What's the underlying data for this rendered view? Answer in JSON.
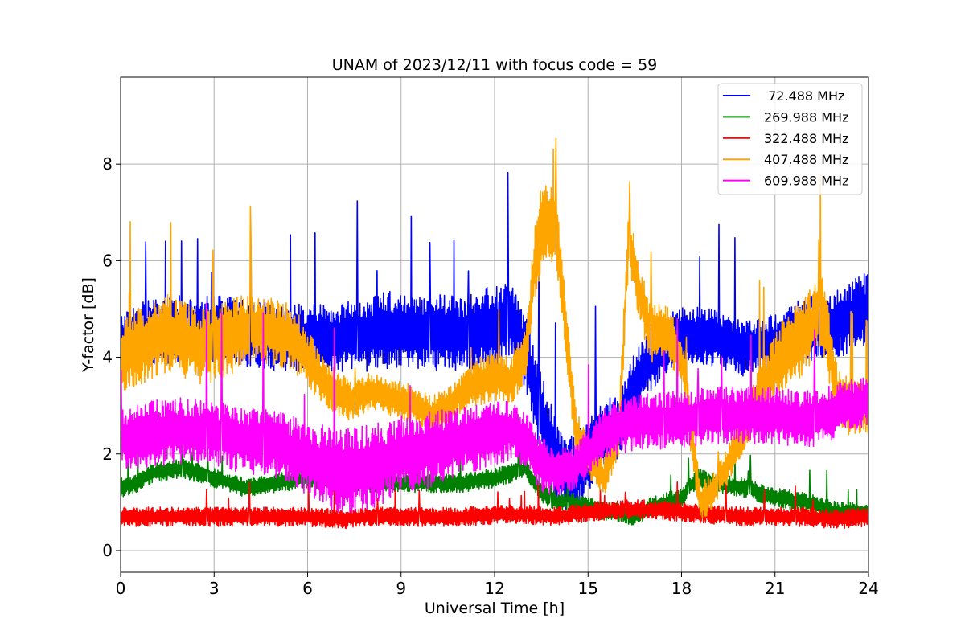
{
  "chart_data": {
    "type": "line",
    "title": "UNAM of 2023/12/11 with focus code = 59",
    "xlabel": "Universal Time [h]",
    "ylabel": "Y-factor [dB]",
    "xlim": [
      0,
      24
    ],
    "ylim": [
      -0.45,
      9.8
    ],
    "xticks": [
      0,
      3,
      6,
      9,
      12,
      15,
      18,
      21,
      24
    ],
    "yticks": [
      0,
      2,
      4,
      6,
      8
    ],
    "grid": true,
    "legend_position": "top-right",
    "series": [
      {
        "name": " 72.488 MHz",
        "color": "#0000ff",
        "x": [
          0,
          0.5,
          1,
          2,
          3,
          4,
          5,
          6,
          7,
          8,
          9,
          10,
          11,
          12,
          12.5,
          13,
          13.5,
          14,
          14.5,
          15,
          15.5,
          16,
          16.5,
          17,
          18,
          19,
          20,
          21,
          22,
          23,
          24
        ],
        "y": [
          4.3,
          4.5,
          4.5,
          4.6,
          4.6,
          4.5,
          4.4,
          4.4,
          4.4,
          4.5,
          4.6,
          4.5,
          4.5,
          4.6,
          4.8,
          4.1,
          2.8,
          1.8,
          1.5,
          2.0,
          2.4,
          2.6,
          3.4,
          4.0,
          4.5,
          4.4,
          4.2,
          4.3,
          4.6,
          4.7,
          5.0
        ],
        "band": [
          0.6,
          0.6,
          0.7,
          0.7,
          0.7,
          0.7,
          0.7,
          0.7,
          0.7,
          0.8,
          0.8,
          0.8,
          0.8,
          0.9,
          0.8,
          0.8,
          0.9,
          0.9,
          0.9,
          0.8,
          0.7,
          0.7,
          0.7,
          0.7,
          0.6,
          0.6,
          0.6,
          0.6,
          0.7,
          0.7,
          0.8
        ]
      },
      {
        "name": "269.988 MHz",
        "color": "#008000",
        "x": [
          0,
          0.5,
          1,
          2,
          3,
          4,
          5,
          6,
          7,
          8,
          9,
          10,
          11,
          12,
          12.5,
          13,
          13.5,
          14,
          14.5,
          15,
          15.5,
          16,
          16.5,
          17,
          18,
          18.5,
          19,
          20,
          21,
          22,
          23,
          24
        ],
        "y": [
          1.3,
          1.4,
          1.6,
          1.7,
          1.5,
          1.3,
          1.4,
          1.5,
          1.4,
          1.4,
          1.4,
          1.4,
          1.4,
          1.5,
          1.6,
          1.7,
          1.2,
          1.0,
          1.0,
          0.9,
          0.8,
          0.8,
          0.7,
          0.9,
          1.1,
          1.5,
          1.4,
          1.3,
          1.1,
          1.0,
          0.8,
          0.8
        ],
        "band": [
          0.2,
          0.2,
          0.2,
          0.2,
          0.2,
          0.2,
          0.2,
          0.2,
          0.2,
          0.2,
          0.2,
          0.2,
          0.2,
          0.2,
          0.2,
          0.2,
          0.2,
          0.2,
          0.2,
          0.2,
          0.2,
          0.2,
          0.2,
          0.2,
          0.2,
          0.2,
          0.2,
          0.2,
          0.2,
          0.2,
          0.2,
          0.2
        ]
      },
      {
        "name": "322.488 MHz",
        "color": "#ff0000",
        "x": [
          0,
          1,
          2,
          3,
          4,
          5,
          6,
          7,
          8,
          9,
          10,
          11,
          12,
          13,
          14,
          15,
          16,
          17,
          18,
          19,
          20,
          21,
          22,
          23,
          24
        ],
        "y": [
          0.7,
          0.7,
          0.7,
          0.7,
          0.7,
          0.7,
          0.7,
          0.65,
          0.7,
          0.7,
          0.7,
          0.7,
          0.75,
          0.75,
          0.7,
          0.8,
          0.85,
          0.85,
          0.8,
          0.75,
          0.7,
          0.7,
          0.7,
          0.65,
          0.7
        ],
        "band": [
          0.2,
          0.2,
          0.2,
          0.2,
          0.2,
          0.2,
          0.2,
          0.2,
          0.2,
          0.2,
          0.2,
          0.2,
          0.2,
          0.2,
          0.2,
          0.2,
          0.2,
          0.2,
          0.2,
          0.2,
          0.2,
          0.2,
          0.2,
          0.2,
          0.2
        ]
      },
      {
        "name": "407.488 MHz",
        "color": "#ffa500",
        "x": [
          0,
          0.5,
          1,
          1.5,
          2,
          2.5,
          3,
          3.5,
          4,
          4.5,
          5,
          5.5,
          6,
          6.5,
          7,
          7.5,
          8,
          8.5,
          9,
          9.5,
          10,
          10.5,
          11,
          11.5,
          12,
          12.5,
          13,
          13.3,
          13.6,
          14,
          14.3,
          14.6,
          15,
          15.5,
          16,
          16.3,
          16.6,
          17,
          17.5,
          18,
          18.3,
          18.6,
          19,
          19.5,
          20,
          20.5,
          21,
          21.5,
          22,
          22.5,
          22.8,
          23,
          23.5,
          24
        ],
        "y": [
          4.0,
          4.2,
          4.3,
          4.5,
          4.4,
          4.2,
          4.3,
          4.4,
          4.6,
          4.6,
          4.5,
          4.4,
          4.0,
          3.5,
          3.2,
          3.1,
          3.3,
          3.2,
          3.1,
          3.0,
          2.8,
          3.0,
          3.3,
          3.5,
          3.6,
          3.5,
          4.0,
          6.0,
          7.0,
          6.5,
          4.5,
          2.5,
          1.9,
          1.5,
          2.5,
          6.5,
          5.5,
          4.5,
          4.5,
          4.0,
          2.5,
          1.0,
          1.2,
          1.8,
          2.5,
          3.2,
          3.8,
          4.2,
          4.5,
          5.0,
          4.0,
          3.2,
          2.9,
          3.0
        ],
        "band": [
          0.7,
          0.8,
          0.8,
          0.8,
          0.8,
          0.8,
          0.8,
          0.8,
          0.7,
          0.7,
          0.7,
          0.7,
          0.6,
          0.5,
          0.5,
          0.4,
          0.4,
          0.4,
          0.4,
          0.4,
          0.4,
          0.4,
          0.4,
          0.5,
          0.5,
          0.5,
          0.6,
          0.8,
          0.9,
          0.8,
          0.6,
          0.5,
          0.4,
          0.4,
          0.5,
          0.6,
          0.6,
          0.6,
          0.6,
          0.5,
          0.5,
          0.4,
          0.4,
          0.4,
          0.5,
          0.6,
          0.7,
          0.8,
          0.8,
          0.8,
          0.7,
          0.6,
          0.6,
          0.6
        ]
      },
      {
        "name": "609.988 MHz",
        "color": "#ff00ff",
        "x": [
          0,
          1,
          2,
          3,
          4,
          5,
          6,
          7,
          8,
          9,
          10,
          11,
          12,
          12.5,
          13,
          13.5,
          14,
          14.5,
          15,
          15.5,
          16,
          17,
          18,
          19,
          20,
          21,
          22,
          23,
          24
        ],
        "y": [
          2.3,
          2.4,
          2.5,
          2.4,
          2.3,
          2.2,
          1.9,
          1.6,
          1.7,
          2.0,
          2.1,
          2.3,
          2.4,
          2.5,
          2.3,
          1.8,
          1.6,
          1.7,
          2.0,
          2.4,
          2.6,
          2.7,
          2.7,
          2.8,
          2.8,
          2.8,
          2.7,
          2.9,
          3.1
        ],
        "band": [
          0.6,
          0.7,
          0.7,
          0.7,
          0.7,
          0.7,
          0.8,
          0.9,
          0.9,
          0.8,
          0.8,
          0.7,
          0.7,
          0.6,
          0.6,
          0.6,
          0.5,
          0.5,
          0.5,
          0.6,
          0.6,
          0.6,
          0.6,
          0.6,
          0.6,
          0.6,
          0.6,
          0.6,
          0.5
        ]
      }
    ]
  }
}
